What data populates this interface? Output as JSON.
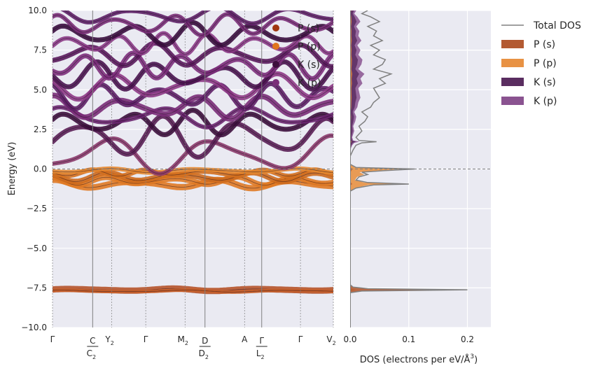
{
  "chart_data": [
    {
      "type": "line",
      "subtype": "band-structure",
      "ylabel": "Energy (eV)",
      "ylim": [
        -10,
        10
      ],
      "yticks": [
        -10.0,
        -7.5,
        -5.0,
        -2.5,
        0.0,
        2.5,
        5.0,
        7.5,
        10.0
      ],
      "ytick_labels": [
        "−10.0",
        "−7.5",
        "−5.0",
        "−2.5",
        "0.0",
        "2.5",
        "5.0",
        "7.5",
        "10.0"
      ],
      "fermi_level": 0.0,
      "kpath": [
        {
          "label": "Γ",
          "sub": "",
          "pos": 0.0,
          "type": "plain"
        },
        {
          "label": "C",
          "sub": "",
          "label2": "C",
          "sub2": "2",
          "pos": 0.143,
          "type": "frac"
        },
        {
          "label": "Y",
          "sub": "2",
          "pos": 0.211,
          "type": "plain"
        },
        {
          "label": "Γ",
          "sub": "",
          "pos": 0.332,
          "type": "plain"
        },
        {
          "label": "M",
          "sub": "2",
          "pos": 0.472,
          "type": "plain"
        },
        {
          "label": "D",
          "sub": "",
          "label2": "D",
          "sub2": "2",
          "pos": 0.543,
          "type": "frac"
        },
        {
          "label": "A",
          "sub": "",
          "pos": 0.684,
          "type": "plain"
        },
        {
          "label": "Γ",
          "sub": "",
          "label2": "L",
          "sub2": "2",
          "pos": 0.745,
          "type": "frac"
        },
        {
          "label": "Γ",
          "sub": "",
          "pos": 0.883,
          "type": "plain"
        },
        {
          "label": "V",
          "sub": "2",
          "pos": 1.0,
          "type": "plain"
        }
      ],
      "bands": [
        {
          "base": -7.62,
          "amp": 0.06,
          "freq": 6,
          "color": "#b5532a",
          "width": 9
        },
        {
          "base": -7.7,
          "amp": 0.05,
          "freq": 5,
          "color": "#c8602a",
          "width": 5
        },
        {
          "base": -0.95,
          "amp": 0.2,
          "freq": 7,
          "color": "#e07a25",
          "width": 9
        },
        {
          "base": -0.75,
          "amp": 0.2,
          "freq": 9,
          "color": "#e07a25",
          "width": 8
        },
        {
          "base": -0.5,
          "amp": 0.22,
          "freq": 8,
          "color": "#cd6a1e",
          "width": 8
        },
        {
          "base": -0.25,
          "amp": 0.15,
          "freq": 10,
          "color": "#d4701f",
          "width": 7
        },
        {
          "base": -0.1,
          "amp": 0.1,
          "freq": 6,
          "color": "#e58a32",
          "width": 6
        },
        {
          "base": 0.9,
          "amp": 0.9,
          "freq": 5,
          "color": "#8b3a6b",
          "width": 6
        },
        {
          "base": 2.0,
          "amp": 1.0,
          "freq": 7,
          "color": "#5a1f55",
          "width": 7
        },
        {
          "base": 2.9,
          "amp": 0.6,
          "freq": 9,
          "color": "#3d0f3d",
          "width": 7
        },
        {
          "base": 3.3,
          "amp": 0.5,
          "freq": 6,
          "color": "#6b2670",
          "width": 6
        },
        {
          "base": 3.9,
          "amp": 0.55,
          "freq": 8,
          "color": "#7a2e78",
          "width": 8
        },
        {
          "base": 4.6,
          "amp": 0.6,
          "freq": 10,
          "color": "#5e2067",
          "width": 7
        },
        {
          "base": 5.2,
          "amp": 0.6,
          "freq": 7,
          "color": "#8e3a86",
          "width": 7
        },
        {
          "base": 5.9,
          "amp": 0.65,
          "freq": 9,
          "color": "#4a1450",
          "width": 7
        },
        {
          "base": 6.5,
          "amp": 0.6,
          "freq": 11,
          "color": "#7d2f7c",
          "width": 7
        },
        {
          "base": 7.2,
          "amp": 0.55,
          "freq": 8,
          "color": "#5a1a5c",
          "width": 7
        },
        {
          "base": 7.9,
          "amp": 0.5,
          "freq": 12,
          "color": "#8b3a86",
          "width": 6
        },
        {
          "base": 8.5,
          "amp": 0.55,
          "freq": 9,
          "color": "#3a0d3e",
          "width": 7
        },
        {
          "base": 9.1,
          "amp": 0.5,
          "freq": 10,
          "color": "#7a2e78",
          "width": 6
        },
        {
          "base": 9.7,
          "amp": 0.4,
          "freq": 7,
          "color": "#5e2067",
          "width": 6
        }
      ],
      "legend": [
        {
          "name": "P (s)",
          "color": "#a0360f"
        },
        {
          "name": "P (p)",
          "color": "#e0761e"
        },
        {
          "name": "K (s)",
          "color": "#3d0f3d"
        },
        {
          "name": "K (p)",
          "color": "#7a2e78"
        }
      ]
    },
    {
      "type": "line",
      "subtype": "density-of-states",
      "xlabel": "DOS (electrons per eV/Å",
      "xlabel_sup": "3",
      "xlabel_end": ")",
      "xlim": [
        0,
        0.24
      ],
      "xticks": [
        0.0,
        0.1,
        0.2
      ],
      "xtick_labels": [
        "0.0",
        "0.1",
        "0.2"
      ],
      "ylim": [
        -10,
        10
      ],
      "total": {
        "energy": [
          -10,
          -7.8,
          -7.7,
          -7.62,
          -7.55,
          -7.45,
          -7.3,
          -1.4,
          -1.2,
          -1.0,
          -0.95,
          -0.85,
          -0.7,
          -0.5,
          -0.35,
          -0.2,
          -0.1,
          0.0,
          0.1,
          0.3,
          0.8,
          1.2,
          1.5,
          1.65,
          1.72,
          1.8,
          2.0,
          2.4,
          2.7,
          3.0,
          3.3,
          3.6,
          3.9,
          4.2,
          4.5,
          4.8,
          5.1,
          5.4,
          5.7,
          6.0,
          6.3,
          6.6,
          6.9,
          7.2,
          7.5,
          7.8,
          8.1,
          8.4,
          8.7,
          9.0,
          9.3,
          9.6,
          9.8,
          10
        ],
        "dos": [
          0,
          0,
          0.02,
          0.2,
          0.03,
          0.005,
          0,
          0,
          0.01,
          0.04,
          0.1,
          0.03,
          0.01,
          0.015,
          0.03,
          0.02,
          0.06,
          0.11,
          0.01,
          0,
          0,
          0.005,
          0.01,
          0.02,
          0.045,
          0.015,
          0.01,
          0.02,
          0.015,
          0.025,
          0.03,
          0.02,
          0.035,
          0.04,
          0.05,
          0.045,
          0.04,
          0.06,
          0.05,
          0.07,
          0.04,
          0.055,
          0.06,
          0.04,
          0.05,
          0.035,
          0.055,
          0.04,
          0.045,
          0.03,
          0.05,
          0.035,
          0.02,
          0.03
        ]
      },
      "legend": [
        {
          "name": "Total DOS",
          "color": "#808080",
          "kind": "line"
        },
        {
          "name": "P (s)",
          "color": "#b35a32",
          "kind": "patch"
        },
        {
          "name": "P (p)",
          "color": "#e89244",
          "kind": "patch"
        },
        {
          "name": "K (s)",
          "color": "#5a2d60",
          "kind": "patch"
        },
        {
          "name": "K (p)",
          "color": "#8a5390",
          "kind": "patch"
        }
      ]
    }
  ],
  "colors": {
    "panel_bg": "#eaeaf2",
    "grid": "#ffffff",
    "fermi": "#808080"
  }
}
